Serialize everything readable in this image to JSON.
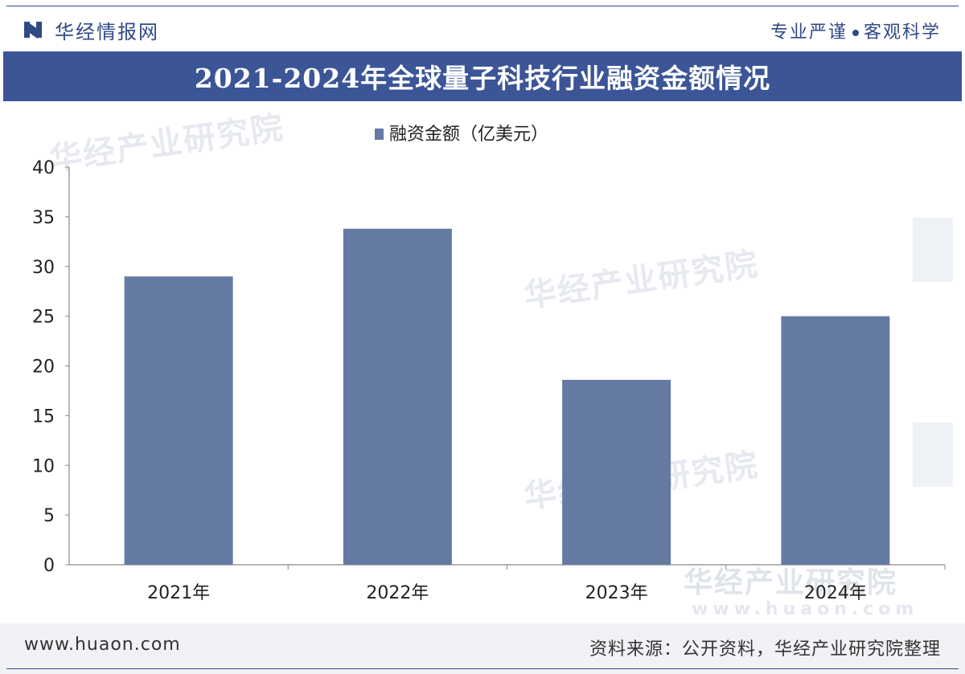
{
  "header": {
    "logo_text": "华经情报网",
    "slogan_left": "专业严谨",
    "slogan_right": "客观科学"
  },
  "chart_data": {
    "type": "bar",
    "title": "2021-2024年全球量子科技行业融资金额情况",
    "categories": [
      "2021年",
      "2022年",
      "2023年",
      "2024年"
    ],
    "series": [
      {
        "name": "融资金额（亿美元）",
        "values": [
          29,
          33.8,
          18.6,
          25
        ]
      }
    ],
    "ylim": [
      0,
      40
    ],
    "yticks": [
      0,
      5,
      10,
      15,
      20,
      25,
      30,
      35,
      40
    ],
    "legend_position": "top-center",
    "grid": false,
    "bar_color": "#657aa3",
    "accent_color": "#3b5597"
  },
  "watermark": {
    "text": "华经产业研究院",
    "url": "www.huaon.com"
  },
  "footer": {
    "website": "www.huaon.com",
    "source": "资料来源：公开资料，华经产业研究院整理"
  }
}
